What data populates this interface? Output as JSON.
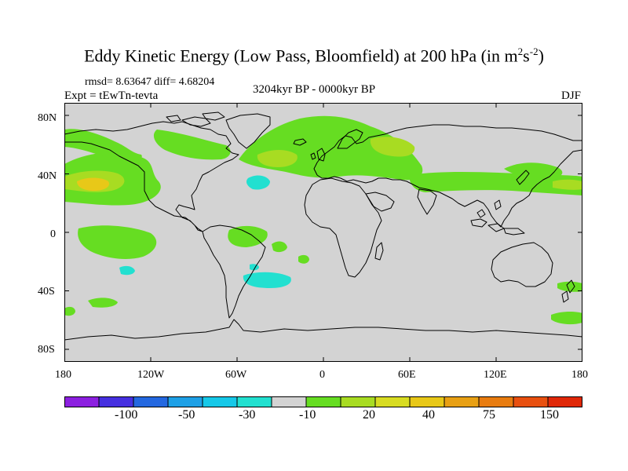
{
  "title": {
    "main": "Eddy Kinetic Energy (Low Pass, Bloomfield) at 200 hPa (in m",
    "sup1": "2",
    "mid": "s",
    "sup2": "-2",
    "end": ")"
  },
  "stats": "rmsd= 8.63647 diff= 4.68204",
  "experiment": "Expt = tEwTn-tevta",
  "period": "3204kyr BP - 0000kyr BP",
  "season": "DJF",
  "map": {
    "land_ocean_background": "#d3d3d3",
    "lat_ticks": [
      "80N",
      "40N",
      "0",
      "40S",
      "80S"
    ],
    "lon_ticks": [
      "180",
      "120W",
      "60W",
      "0",
      "60E",
      "120E",
      "180"
    ]
  },
  "colorbar": {
    "colors": [
      "#8c20e0",
      "#4630e0",
      "#2468e0",
      "#1ea0e6",
      "#16c8e8",
      "#22e0d0",
      "#d3d3d3",
      "#66dd22",
      "#a8dc22",
      "#d8dc22",
      "#e8c818",
      "#e8a014",
      "#e87c10",
      "#e85010",
      "#e02808"
    ],
    "labels": [
      "-100",
      "-50",
      "-30",
      "-10",
      "20",
      "40",
      "75",
      "150"
    ]
  },
  "field_colors": {
    "green": "#66dd22",
    "yellow_green": "#a8dc22",
    "orange": "#e8c818",
    "cyan": "#22e0d0"
  }
}
